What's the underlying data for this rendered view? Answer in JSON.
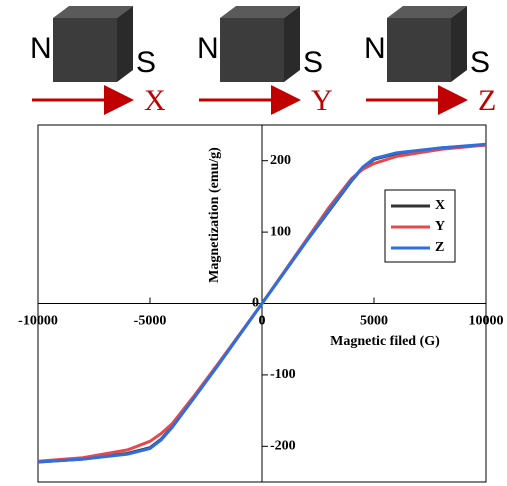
{
  "diagram": {
    "magnets": [
      {
        "north": "N",
        "south": "S",
        "axis": "X"
      },
      {
        "north": "N",
        "south": "S",
        "axis": "Y"
      },
      {
        "north": "N",
        "south": "S",
        "axis": "Z"
      }
    ]
  },
  "chart_data": {
    "type": "line",
    "x_label": "Magnetic filed (G)",
    "y_label": "Magnetization (emu/g)",
    "x": [
      -10000,
      -8000,
      -6000,
      -5000,
      -4500,
      -4000,
      -3000,
      -2000,
      -1000,
      0,
      1000,
      2000,
      3000,
      4000,
      4500,
      5000,
      6000,
      8000,
      10000
    ],
    "series": [
      {
        "name": "X",
        "color": "#333333",
        "values": [
          -222,
          -218,
          -210,
          -202,
          -190,
          -172,
          -130,
          -88,
          -44,
          0,
          44,
          88,
          130,
          172,
          190,
          202,
          210,
          218,
          222
        ]
      },
      {
        "name": "Y",
        "color": "#e8474b",
        "values": [
          -221,
          -216,
          -205,
          -193,
          -182,
          -168,
          -128,
          -86,
          -43,
          0,
          45,
          90,
          135,
          175,
          188,
          196,
          206,
          216,
          222
        ]
      },
      {
        "name": "Z",
        "color": "#2f6fdc",
        "values": [
          -222,
          -218,
          -211,
          -203,
          -191,
          -173,
          -131,
          -88,
          -44,
          0,
          44,
          88,
          131,
          173,
          191,
          203,
          211,
          218,
          223
        ]
      }
    ],
    "xlim": [
      -10000,
      10000
    ],
    "ylim": [
      -250,
      250
    ],
    "xticks": [
      -10000,
      -5000,
      0,
      5000,
      10000
    ],
    "yticks": [
      -200,
      -100,
      0,
      100,
      200
    ]
  }
}
